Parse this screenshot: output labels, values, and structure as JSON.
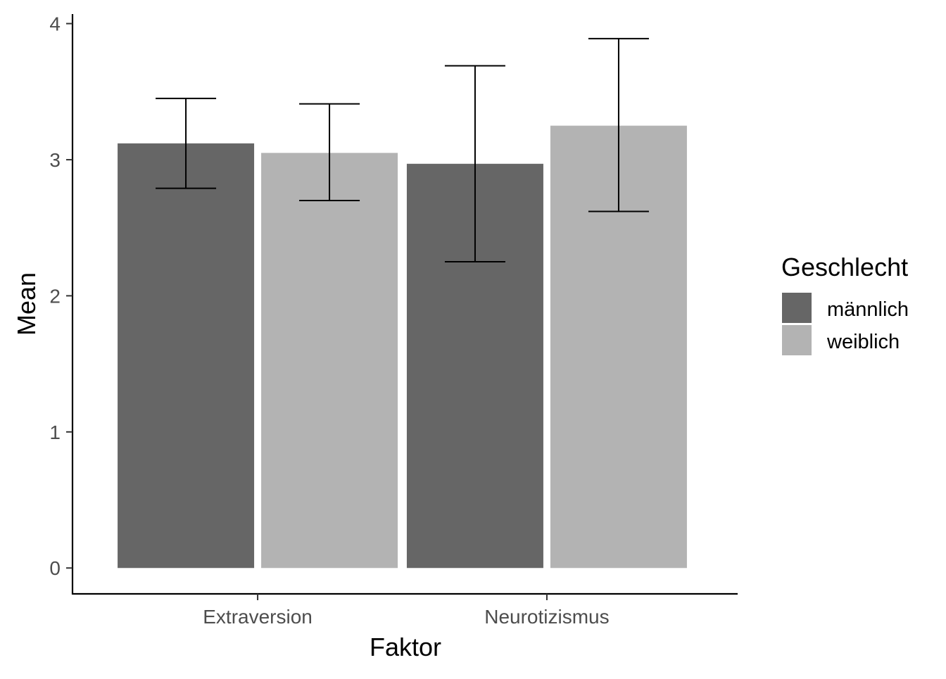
{
  "chart_data": {
    "type": "bar",
    "title": "",
    "xlabel": "Faktor",
    "ylabel": "Mean",
    "categories": [
      "Extraversion",
      "Neurotizismus"
    ],
    "ylim": [
      -0.19,
      4.07
    ],
    "y_ticks": [
      0,
      1,
      2,
      3,
      4
    ],
    "grid": false,
    "legend": {
      "title": "Geschlecht",
      "position": "right"
    },
    "series": [
      {
        "name": "männlich",
        "color": "#666666",
        "values": [
          3.12,
          2.97
        ],
        "error_low": [
          2.79,
          2.25
        ],
        "error_high": [
          3.45,
          3.69
        ]
      },
      {
        "name": "weiblich",
        "color": "#b3b3b3",
        "values": [
          3.05,
          3.25
        ],
        "error_low": [
          2.7,
          2.62
        ],
        "error_high": [
          3.41,
          3.89
        ]
      }
    ]
  }
}
